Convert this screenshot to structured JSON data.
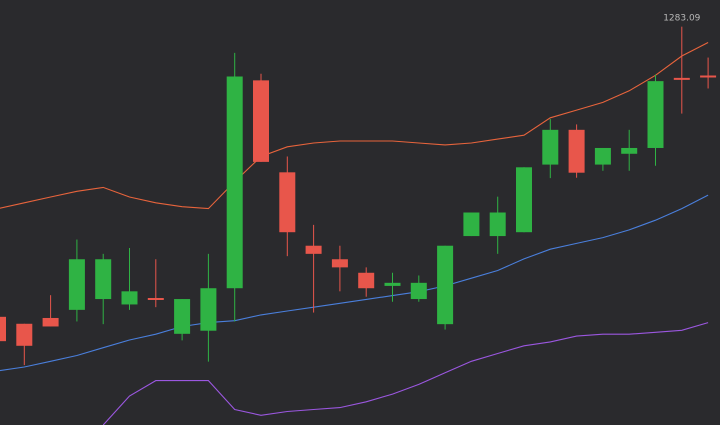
{
  "chart_data": {
    "type": "candlestick",
    "grid": false,
    "ylim": [
      1180,
      1290
    ],
    "colors": {
      "background": "#2a2a2d",
      "up": "#2fb344",
      "down": "#e8564b",
      "upper_band": "#e8643c",
      "middle_band": "#4a7fdc",
      "lower_band": "#9b57e0"
    },
    "candles": [
      {
        "x": 0,
        "open": 1208.0,
        "close": 1201.7,
        "high": 1210.5,
        "low": 1199.2
      },
      {
        "x": 1,
        "open": 1206.2,
        "close": 1200.5,
        "high": 1206.2,
        "low": 1195.5
      },
      {
        "x": 2,
        "open": 1207.7,
        "close": 1205.5,
        "high": 1213.6,
        "low": 1205.5
      },
      {
        "x": 3,
        "open": 1209.8,
        "close": 1222.9,
        "high": 1228.0,
        "low": 1206.8
      },
      {
        "x": 4,
        "open": 1212.6,
        "close": 1222.9,
        "high": 1224.3,
        "low": 1206.1
      },
      {
        "x": 5,
        "open": 1211.2,
        "close": 1214.6,
        "high": 1225.8,
        "low": 1209.8
      },
      {
        "x": 6,
        "open": 1212.6,
        "close": 1212.6,
        "high": 1222.9,
        "low": 1210.5
      },
      {
        "x": 7,
        "open": 1203.6,
        "close": 1212.6,
        "high": 1212.6,
        "low": 1201.9
      },
      {
        "x": 8,
        "open": 1204.4,
        "close": 1215.4,
        "high": 1224.3,
        "low": 1196.4
      },
      {
        "x": 9,
        "open": 1215.4,
        "close": 1270.2,
        "high": 1276.3,
        "low": 1206.8
      },
      {
        "x": 10,
        "open": 1269.2,
        "close": 1248.1,
        "high": 1270.9,
        "low": 1248.1
      },
      {
        "x": 11,
        "open": 1245.4,
        "close": 1229.9,
        "high": 1249.5,
        "low": 1223.7
      },
      {
        "x": 12,
        "open": 1226.4,
        "close": 1224.3,
        "high": 1231.8,
        "low": 1209.1
      },
      {
        "x": 13,
        "open": 1222.9,
        "close": 1220.8,
        "high": 1226.4,
        "low": 1214.6
      },
      {
        "x": 14,
        "open": 1219.4,
        "close": 1215.4,
        "high": 1220.8,
        "low": 1213.2
      },
      {
        "x": 15,
        "open": 1216.0,
        "close": 1216.8,
        "high": 1219.4,
        "low": 1211.9
      },
      {
        "x": 16,
        "open": 1212.6,
        "close": 1216.8,
        "high": 1218.7,
        "low": 1211.9
      },
      {
        "x": 17,
        "open": 1206.1,
        "close": 1226.4,
        "high": 1226.4,
        "low": 1204.7
      },
      {
        "x": 18,
        "open": 1228.9,
        "close": 1235.0,
        "high": 1235.0,
        "low": 1228.9
      },
      {
        "x": 19,
        "open": 1228.9,
        "close": 1235.0,
        "high": 1239.1,
        "low": 1224.3
      },
      {
        "x": 20,
        "open": 1229.9,
        "close": 1246.7,
        "high": 1246.7,
        "low": 1229.9
      },
      {
        "x": 21,
        "open": 1247.4,
        "close": 1256.4,
        "high": 1259.2,
        "low": 1243.9
      },
      {
        "x": 22,
        "open": 1256.4,
        "close": 1245.3,
        "high": 1257.8,
        "low": 1244.0
      },
      {
        "x": 23,
        "open": 1247.4,
        "close": 1251.7,
        "high": 1251.7,
        "low": 1245.8
      },
      {
        "x": 24,
        "open": 1250.2,
        "close": 1251.7,
        "high": 1256.4,
        "low": 1245.8
      },
      {
        "x": 25,
        "open": 1251.7,
        "close": 1269.0,
        "high": 1270.7,
        "low": 1247.1
      },
      {
        "x": 26,
        "open": 1269.6,
        "close": 1269.6,
        "high": 1283.1,
        "low": 1260.6
      },
      {
        "x": 27,
        "open": 1270.2,
        "close": 1270.2,
        "high": 1275.1,
        "low": 1267.1
      }
    ],
    "upper_band": [
      1236.0,
      1237.5,
      1239.0,
      1240.5,
      1241.5,
      1239.0,
      1237.5,
      1236.5,
      1236.0,
      1243.0,
      1249.5,
      1252.0,
      1253.0,
      1253.5,
      1253.5,
      1253.5,
      1253.0,
      1252.5,
      1253.0,
      1254.0,
      1255.0,
      1259.5,
      1261.5,
      1263.5,
      1266.5,
      1270.5,
      1275.5,
      1279.0
    ],
    "middle_band": [
      1194.0,
      1195.0,
      1196.5,
      1198.0,
      1200.0,
      1202.0,
      1203.5,
      1205.5,
      1206.5,
      1207.0,
      1208.5,
      1209.5,
      1210.5,
      1211.5,
      1212.5,
      1213.5,
      1214.5,
      1216.0,
      1218.0,
      1220.0,
      1223.0,
      1225.5,
      1227.0,
      1228.5,
      1230.5,
      1233.0,
      1236.0,
      1239.5
    ],
    "lower_band": [
      null,
      null,
      null,
      null,
      1180.0,
      1187.5,
      1191.5,
      1191.5,
      1191.5,
      1184.0,
      1182.5,
      1183.5,
      1184.0,
      1184.5,
      1186.0,
      1188.0,
      1190.5,
      1193.5,
      1196.5,
      1198.5,
      1200.5,
      1201.5,
      1203.0,
      1203.5,
      1203.5,
      1204.0,
      1204.5,
      1206.5
    ],
    "annotations": [
      {
        "text": "1283.09",
        "x": 26,
        "y": 1283.1
      }
    ]
  }
}
